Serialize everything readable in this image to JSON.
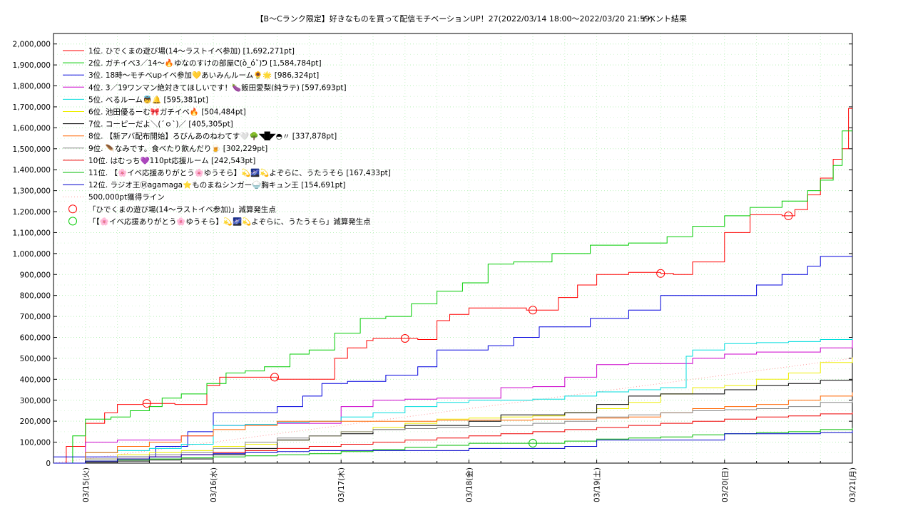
{
  "chart_data": {
    "type": "line",
    "title": "【B～Cランク限定】好きなものを買って配信モチベーションUP！27(2022/03/14 18:00～2022/03/20 21:59)",
    "subtitle": "イベント結果",
    "ylim": [
      0,
      2050000
    ],
    "y_ticks": [
      0,
      100000,
      200000,
      300000,
      400000,
      500000,
      600000,
      700000,
      800000,
      900000,
      1000000,
      1100000,
      1200000,
      1300000,
      1400000,
      1500000,
      1600000,
      1700000,
      1800000,
      1900000,
      2000000
    ],
    "y_tick_labels": [
      "0",
      "100,000",
      "200,000",
      "300,000",
      "400,000",
      "500,000",
      "600,000",
      "700,000",
      "800,000",
      "900,000",
      "1,000,000",
      "1,100,000",
      "1,200,000",
      "1,300,000",
      "1,400,000",
      "1,500,000",
      "1,600,000",
      "1,700,000",
      "1,800,000",
      "1,900,000",
      "2,000,000"
    ],
    "xlim": [
      0,
      6.25
    ],
    "x_ticks": [
      0.25,
      1.25,
      2.25,
      3.25,
      4.25,
      5.25,
      6.25
    ],
    "x_tick_labels": [
      "03/15(火)",
      "03/16(水)",
      "03/17(木)",
      "03/18(金)",
      "03/19(土)",
      "03/20(日)",
      "03/21(月)"
    ],
    "grid": true,
    "legend_position": "top-left",
    "series": [
      {
        "name": "1位. ひでくまの遊び場(14〜ラストイベ参加) [1,692,271pt]",
        "color": "#ff0000",
        "x": [
          0,
          0.1,
          0.25,
          0.4,
          0.5,
          0.7,
          0.75,
          0.95,
          1.0,
          1.2,
          1.3,
          1.5,
          1.75,
          2.0,
          2.2,
          2.3,
          2.45,
          2.5,
          2.75,
          2.85,
          3.0,
          3.1,
          3.25,
          3.55,
          3.7,
          3.8,
          3.95,
          4.1,
          4.25,
          4.5,
          4.75,
          4.85,
          5.0,
          5.25,
          5.45,
          5.6,
          5.7,
          5.8,
          5.9,
          6.0,
          6.1,
          6.17,
          6.22,
          6.25
        ],
        "y": [
          0,
          80000,
          190000,
          240000,
          280000,
          285000,
          285000,
          280000,
          280000,
          370000,
          410000,
          410000,
          400000,
          400000,
          500000,
          550000,
          585000,
          595000,
          595000,
          590000,
          680000,
          710000,
          740000,
          740000,
          730000,
          730000,
          790000,
          850000,
          900000,
          910000,
          905000,
          900000,
          960000,
          1100000,
          1185000,
          1185000,
          1180000,
          1210000,
          1280000,
          1360000,
          1450000,
          1500000,
          1692271,
          1692271
        ],
        "decrease_points_x": [
          0.73,
          1.73,
          2.75,
          3.75,
          4.75,
          5.75
        ]
      },
      {
        "name": "2位. ガチイベ3／14〜🔥ゆなのすけの部屋ᕦ(ò_óˇ)ᕤ [1,584,784pt]",
        "color": "#00cc00",
        "x": [
          0,
          0.15,
          0.25,
          0.45,
          0.6,
          0.75,
          0.85,
          1.0,
          1.2,
          1.35,
          1.5,
          1.65,
          1.85,
          2.0,
          2.2,
          2.4,
          2.6,
          2.8,
          3.0,
          3.2,
          3.4,
          3.6,
          3.9,
          4.2,
          4.5,
          4.8,
          5.0,
          5.25,
          5.45,
          5.7,
          5.9,
          6.0,
          6.1,
          6.17,
          6.25
        ],
        "y": [
          0,
          130000,
          210000,
          220000,
          250000,
          270000,
          310000,
          330000,
          380000,
          430000,
          440000,
          460000,
          520000,
          540000,
          620000,
          690000,
          700000,
          760000,
          820000,
          860000,
          950000,
          960000,
          1000000,
          1040000,
          1050000,
          1080000,
          1130000,
          1180000,
          1220000,
          1250000,
          1300000,
          1350000,
          1420000,
          1584784,
          1584784
        ]
      },
      {
        "name": "3位. 18時〜モチベupイベ参加💛あいみんルーム🌻🌟 [986,324pt]",
        "color": "#0000dd",
        "x": [
          0,
          0.5,
          0.8,
          1.05,
          1.25,
          1.5,
          1.75,
          1.95,
          2.1,
          2.3,
          2.6,
          2.85,
          3.0,
          3.25,
          3.4,
          3.6,
          3.8,
          4.0,
          4.2,
          4.5,
          4.75,
          4.95,
          5.0,
          5.25,
          5.5,
          5.7,
          5.9,
          6.0,
          6.25
        ],
        "y": [
          30000,
          30000,
          80000,
          150000,
          240000,
          240000,
          270000,
          320000,
          380000,
          390000,
          420000,
          460000,
          540000,
          540000,
          560000,
          600000,
          650000,
          650000,
          690000,
          730000,
          800000,
          800000,
          800000,
          800000,
          850000,
          900000,
          940000,
          986324,
          986324
        ]
      },
      {
        "name": "4位. 3／19ワンマン絶対きてほしいです！🍆飯田愛梨(純ラテ) [597,693pt]",
        "color": "#cc00cc",
        "x": [
          0,
          0.25,
          0.5,
          0.8,
          1.0,
          1.25,
          1.5,
          1.75,
          2.0,
          2.25,
          2.5,
          2.75,
          3.0,
          3.25,
          3.5,
          3.75,
          4.0,
          4.25,
          4.5,
          4.75,
          5.0,
          5.25,
          5.5,
          5.75,
          6.0,
          6.25
        ],
        "y": [
          0,
          100000,
          110000,
          110000,
          130000,
          180000,
          185000,
          190000,
          190000,
          270000,
          300000,
          305000,
          310000,
          310000,
          360000,
          365000,
          410000,
          470000,
          475000,
          475000,
          500000,
          520000,
          530000,
          530000,
          550000,
          597693
        ]
      },
      {
        "name": "5位. べるルーム👼🔔 [595,381pt]",
        "color": "#00dddd",
        "x": [
          0,
          0.25,
          0.5,
          0.75,
          1.0,
          1.25,
          1.5,
          1.75,
          2.0,
          2.25,
          2.5,
          2.75,
          3.0,
          3.25,
          3.5,
          3.75,
          4.0,
          4.25,
          4.5,
          4.75,
          4.95,
          5.0,
          5.25,
          5.5,
          5.75,
          6.0,
          6.25
        ],
        "y": [
          0,
          50000,
          60000,
          70000,
          90000,
          180000,
          185000,
          195000,
          200000,
          220000,
          240000,
          270000,
          290000,
          300000,
          300000,
          305000,
          320000,
          340000,
          350000,
          360000,
          510000,
          540000,
          570000,
          575000,
          580000,
          590000,
          595381
        ]
      },
      {
        "name": "6位. 池田優るーむ🎀ガチイベ🔥 [504,484pt]",
        "color": "#eeee00",
        "x": [
          0,
          0.25,
          0.5,
          0.75,
          1.0,
          1.25,
          1.5,
          1.75,
          2.0,
          2.25,
          2.5,
          2.75,
          3.0,
          3.25,
          3.5,
          3.75,
          4.0,
          4.25,
          4.5,
          4.75,
          5.0,
          5.25,
          5.5,
          5.75,
          6.0,
          6.25
        ],
        "y": [
          0,
          20000,
          40000,
          50000,
          60000,
          80000,
          90000,
          110000,
          130000,
          150000,
          170000,
          190000,
          210000,
          215000,
          220000,
          225000,
          240000,
          260000,
          290000,
          330000,
          360000,
          370000,
          400000,
          430000,
          480000,
          504484
        ]
      },
      {
        "name": "7位. コーピーだよ＼(´ｏ`)／ [405,305pt]",
        "color": "#000000",
        "x": [
          0,
          0.25,
          0.5,
          0.75,
          1.0,
          1.25,
          1.5,
          1.75,
          2.0,
          2.25,
          2.5,
          2.75,
          3.0,
          3.25,
          3.5,
          3.75,
          4.0,
          4.25,
          4.5,
          4.75,
          5.0,
          5.25,
          5.5,
          5.75,
          6.0,
          6.25
        ],
        "y": [
          0,
          5000,
          10000,
          15000,
          20000,
          40000,
          70000,
          110000,
          130000,
          140000,
          160000,
          180000,
          180000,
          200000,
          230000,
          230000,
          240000,
          280000,
          320000,
          330000,
          330000,
          350000,
          370000,
          380000,
          395000,
          405305
        ]
      },
      {
        "name": "8位. 【新アバ配布開始】ろびんあのねわてす🤍🌳◥█◤◓〃 [337,878pt]",
        "color": "#ff6600",
        "x": [
          0,
          0.25,
          0.5,
          0.75,
          1.0,
          1.25,
          1.5,
          1.75,
          2.0,
          2.25,
          2.5,
          2.75,
          3.0,
          3.25,
          3.5,
          3.75,
          4.0,
          4.25,
          4.5,
          4.75,
          5.0,
          5.25,
          5.5,
          5.75,
          6.0,
          6.25
        ],
        "y": [
          0,
          50000,
          80000,
          100000,
          130000,
          160000,
          180000,
          200000,
          200000,
          200000,
          200000,
          200000,
          205000,
          205000,
          205000,
          210000,
          210000,
          215000,
          220000,
          240000,
          260000,
          270000,
          280000,
          300000,
          320000,
          337878
        ]
      },
      {
        "name": "9位. 🪶なみです。食べたり飲んだり🍺 [302,229pt]",
        "color": "#888888",
        "x": [
          0,
          0.25,
          0.5,
          0.75,
          1.0,
          1.25,
          1.5,
          1.75,
          2.0,
          2.25,
          2.5,
          2.75,
          3.0,
          3.25,
          3.5,
          3.75,
          4.0,
          4.25,
          4.5,
          4.75,
          5.0,
          5.25,
          5.5,
          5.75,
          6.0,
          6.25
        ],
        "y": [
          0,
          20000,
          30000,
          40000,
          50000,
          70000,
          100000,
          120000,
          130000,
          150000,
          160000,
          165000,
          170000,
          175000,
          180000,
          190000,
          200000,
          220000,
          230000,
          240000,
          250000,
          255000,
          260000,
          270000,
          290000,
          302229
        ]
      },
      {
        "name": "10位. はむっち💜110pt応援ルーム [242,543pt]",
        "color": "#ee0000",
        "x": [
          0,
          0.25,
          0.5,
          0.75,
          1.0,
          1.25,
          1.5,
          1.75,
          2.0,
          2.25,
          2.5,
          2.75,
          3.0,
          3.25,
          3.5,
          3.75,
          4.0,
          4.25,
          4.5,
          4.75,
          5.0,
          5.25,
          5.5,
          5.75,
          6.0,
          6.25
        ],
        "y": [
          0,
          10000,
          20000,
          30000,
          40000,
          50000,
          60000,
          70000,
          80000,
          90000,
          100000,
          110000,
          120000,
          130000,
          140000,
          150000,
          160000,
          170000,
          180000,
          190000,
          200000,
          210000,
          220000,
          225000,
          235000,
          242543
        ]
      },
      {
        "name": "11位. 【🌸イベ応援ありがとう🌸ゆうそら】💫🌌💫よぞらに、うたうそら [167,433pt]",
        "color": "#00bb00",
        "x": [
          0,
          0.25,
          0.5,
          0.75,
          1.0,
          1.25,
          1.5,
          1.75,
          2.0,
          2.25,
          2.5,
          2.75,
          3.0,
          3.25,
          3.5,
          3.75,
          4.0,
          4.25,
          4.5,
          4.75,
          5.0,
          5.25,
          5.5,
          5.75,
          6.0,
          6.25
        ],
        "y": [
          0,
          10000,
          15000,
          20000,
          25000,
          30000,
          35000,
          40000,
          45000,
          55000,
          65000,
          75000,
          85000,
          95000,
          95000,
          95000,
          105000,
          115000,
          120000,
          125000,
          135000,
          140000,
          145000,
          150000,
          160000,
          167433
        ],
        "decrease_points_x": [
          3.75
        ]
      },
      {
        "name": "12位. ラジオ王Ⓜagamaga⭐ものまねシンガー🍚胸キュン王 [154,691pt]",
        "color": "#0000cc",
        "x": [
          0,
          0.25,
          0.5,
          0.75,
          1.0,
          1.25,
          1.5,
          1.75,
          2.0,
          2.25,
          2.5,
          2.75,
          3.0,
          3.25,
          3.5,
          3.75,
          4.0,
          4.25,
          4.5,
          4.75,
          5.0,
          5.25,
          5.5,
          5.75,
          6.0,
          6.25
        ],
        "y": [
          0,
          10000,
          20000,
          30000,
          40000,
          45000,
          50000,
          55000,
          60000,
          60000,
          60000,
          60000,
          60000,
          70000,
          70000,
          70000,
          80000,
          110000,
          110000,
          110000,
          110000,
          140000,
          140000,
          140000,
          145000,
          154691
        ]
      }
    ],
    "reference_line": {
      "name": "500,000pt獲得ライン",
      "color": "#ff9999",
      "x": [
        0,
        6.25
      ],
      "y": [
        0,
        500000
      ]
    },
    "markers": [
      {
        "label": "「ひでくまの遊び場(14〜ラストイベ参加)」減算発生点",
        "color": "#ff0000"
      },
      {
        "label": "「【🌸イベ応援ありがとう🌸ゆうそら】💫🌌💫よぞらに、うたうそら」減算発生点",
        "color": "#00cc00"
      }
    ]
  }
}
